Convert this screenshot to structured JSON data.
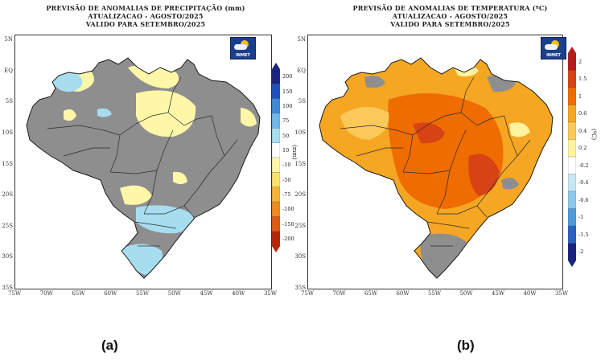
{
  "panels": {
    "a": {
      "title_lines": [
        "PREVISÃO DE ANOMALIAS DE PRECIPITAÇÃO (mm)",
        "ATUALIZACAO - AGOSTO/2025",
        "VALIDO PARA SETEMBRO/2025"
      ],
      "logo_text": "INMET",
      "unit_label": "(mm)",
      "colorbar_labels": [
        "200",
        "150",
        "100",
        "75",
        "50",
        "10",
        "-10",
        "-50",
        "-75",
        "-100",
        "-150",
        "-200"
      ],
      "caption": "(a)"
    },
    "b": {
      "title_lines": [
        "PREVISÃO DE ANOMALIAS DE TEMPERATURA (ºC)",
        "ATUALIZACAO - AGOSTO/2025",
        "VALIDO PARA SETEMBRO/2025"
      ],
      "logo_text": "INMET",
      "unit_label": "(ºC)",
      "colorbar_labels": [
        "2",
        "1.5",
        "1",
        "0.6",
        "0.4",
        "0.2",
        "-0.2",
        "-0.4",
        "-0.6",
        "-1",
        "-1.5",
        "-2"
      ],
      "caption": "(b)"
    }
  },
  "axes": {
    "lat_labels": [
      "5N",
      "EQ",
      "5S",
      "10S",
      "15S",
      "20S",
      "25S",
      "30S",
      "35S"
    ],
    "lon_labels": [
      "75W",
      "70W",
      "65W",
      "60W",
      "55W",
      "50W",
      "45W",
      "40W",
      "35W"
    ]
  },
  "colors": {
    "precip_scale": [
      "#1a237e",
      "#1f4fbf",
      "#3e8ad6",
      "#6fb8e8",
      "#a6def0",
      "#ffffff",
      "#fff7a8",
      "#fbe16b",
      "#f5b335",
      "#ef8a1f",
      "#e05a12",
      "#b8260a"
    ],
    "temp_scale": [
      "#b71c1c",
      "#d84315",
      "#ef6c00",
      "#f5a623",
      "#fbc95a",
      "#fff3a0",
      "#ffffff",
      "#c6e6f5",
      "#8cc8ec",
      "#4f9ad8",
      "#2a62c0",
      "#1a237e"
    ],
    "neutral_gray": "#8e8e8e",
    "border_line": "#2b2b2b"
  }
}
